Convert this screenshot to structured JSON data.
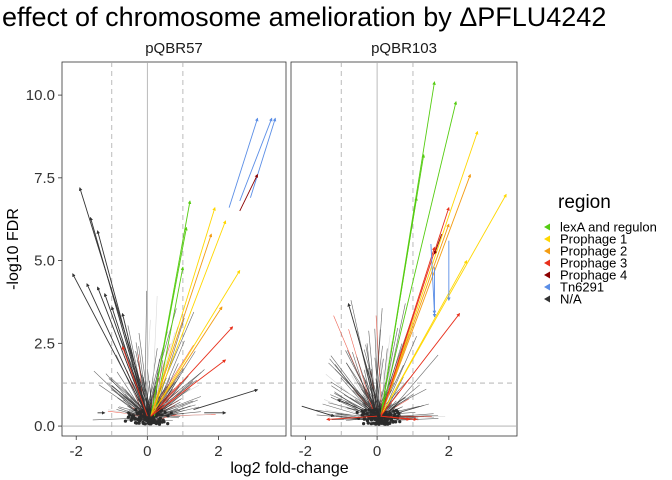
{
  "title": "effect of chromosome amelioration by ΔPFLU4242",
  "chart_data": {
    "type": "scatter",
    "title": "effect of chromosome amelioration by ΔPFLU4242",
    "xlabel": "log2 fold-change",
    "ylabel": "-log10 FDR",
    "xlim": [
      -2.4,
      3.9
    ],
    "ylim": [
      -0.3,
      11.0
    ],
    "x_ticks": [
      -2,
      0,
      2
    ],
    "x_tick_labels": [
      "-2",
      "0",
      "2"
    ],
    "y_ticks": [
      0.0,
      2.5,
      5.0,
      7.5,
      10.0
    ],
    "y_tick_labels": [
      "0.0",
      "2.5",
      "5.0",
      "7.5",
      "10.0"
    ],
    "vlines": [
      -1,
      1
    ],
    "hline": 1.3,
    "grid": false,
    "legend_position": "right",
    "legend_title": "region",
    "legend": [
      {
        "label": "lexA and regulon",
        "color": "#55cc11"
      },
      {
        "label": "Prophage 1",
        "color": "#ffd700"
      },
      {
        "label": "Prophage 2",
        "color": "#f39c12"
      },
      {
        "label": "Prophage 3",
        "color": "#e8301c"
      },
      {
        "label": "Prophage 4",
        "color": "#8b0000"
      },
      {
        "label": "Tn6291",
        "color": "#5b8ee6"
      },
      {
        "label": "N/A",
        "color": "#333333"
      }
    ],
    "facets": [
      {
        "name": "pQBR57",
        "arrows": [
          {
            "x0": 2.3,
            "y0": 6.6,
            "x1": 3.1,
            "y1": 9.3,
            "region": "Tn6291"
          },
          {
            "x0": 2.6,
            "y0": 6.8,
            "x1": 3.5,
            "y1": 9.3,
            "region": "Tn6291"
          },
          {
            "x0": 2.9,
            "y0": 6.9,
            "x1": 3.6,
            "y1": 9.3,
            "region": "Tn6291"
          },
          {
            "x0": 2.6,
            "y0": 6.5,
            "x1": 3.1,
            "y1": 7.6,
            "region": "Prophage 4"
          },
          {
            "x0": 0.1,
            "y0": 0.3,
            "x1": -1.9,
            "y1": 7.2,
            "region": "N/A"
          },
          {
            "x0": 0.0,
            "y0": 0.3,
            "x1": -1.6,
            "y1": 6.3,
            "region": "N/A"
          },
          {
            "x0": 0.0,
            "y0": 0.3,
            "x1": -1.4,
            "y1": 5.9,
            "region": "N/A"
          },
          {
            "x0": 0.0,
            "y0": 0.3,
            "x1": -2.1,
            "y1": 4.6,
            "region": "N/A"
          },
          {
            "x0": 0.0,
            "y0": 0.3,
            "x1": -1.7,
            "y1": 4.3,
            "region": "N/A"
          },
          {
            "x0": 0.0,
            "y0": 0.3,
            "x1": -1.4,
            "y1": 4.2,
            "region": "N/A"
          },
          {
            "x0": 0.0,
            "y0": 0.3,
            "x1": -1.2,
            "y1": 4.0,
            "region": "N/A"
          },
          {
            "x0": 0.0,
            "y0": 0.3,
            "x1": -1.0,
            "y1": 3.6,
            "region": "N/A"
          },
          {
            "x0": 0.0,
            "y0": 0.3,
            "x1": -0.7,
            "y1": 3.4,
            "region": "N/A"
          },
          {
            "x0": 0.0,
            "y0": 0.3,
            "x1": -0.7,
            "y1": 2.4,
            "region": "Prophage 3"
          },
          {
            "x0": 0.1,
            "y0": 0.3,
            "x1": 1.2,
            "y1": 6.8,
            "region": "lexA and regulon"
          },
          {
            "x0": 0.1,
            "y0": 0.3,
            "x1": 1.1,
            "y1": 6.0,
            "region": "lexA and regulon"
          },
          {
            "x0": 0.2,
            "y0": 0.3,
            "x1": 1.0,
            "y1": 4.8,
            "region": "lexA and regulon"
          },
          {
            "x0": 0.1,
            "y0": 0.3,
            "x1": 1.9,
            "y1": 6.6,
            "region": "Prophage 1"
          },
          {
            "x0": 0.1,
            "y0": 0.3,
            "x1": 2.2,
            "y1": 6.2,
            "region": "Prophage 1"
          },
          {
            "x0": 0.1,
            "y0": 0.3,
            "x1": 2.6,
            "y1": 4.7,
            "region": "Prophage 1"
          },
          {
            "x0": 0.1,
            "y0": 0.3,
            "x1": 1.8,
            "y1": 5.8,
            "region": "Prophage 2"
          },
          {
            "x0": 0.1,
            "y0": 0.3,
            "x1": 2.1,
            "y1": 3.6,
            "region": "Prophage 2"
          },
          {
            "x0": 0.1,
            "y0": 0.3,
            "x1": 2.4,
            "y1": 3.0,
            "region": "Prophage 3"
          },
          {
            "x0": 0.1,
            "y0": 0.3,
            "x1": 2.2,
            "y1": 2.0,
            "region": "Prophage 3"
          },
          {
            "x0": -1.4,
            "y0": 0.4,
            "x1": -1.2,
            "y1": 0.4,
            "region": "N/A"
          },
          {
            "x0": 1.6,
            "y0": 0.4,
            "x1": 2.2,
            "y1": 0.4,
            "region": "N/A"
          },
          {
            "x0": 1.3,
            "y0": 0.5,
            "x1": 3.1,
            "y1": 1.1,
            "region": "N/A"
          }
        ]
      },
      {
        "name": "pQBR103",
        "arrows": [
          {
            "x0": 0.1,
            "y0": 0.3,
            "x1": 1.6,
            "y1": 10.4,
            "region": "lexA and regulon"
          },
          {
            "x0": 0.1,
            "y0": 0.3,
            "x1": 2.2,
            "y1": 9.8,
            "region": "lexA and regulon"
          },
          {
            "x0": 0.1,
            "y0": 0.3,
            "x1": 1.3,
            "y1": 8.2,
            "region": "lexA and regulon"
          },
          {
            "x0": 0.1,
            "y0": 0.3,
            "x1": 1.1,
            "y1": 6.9,
            "region": "lexA and regulon"
          },
          {
            "x0": 0.1,
            "y0": 0.3,
            "x1": 2.8,
            "y1": 8.9,
            "region": "Prophage 1"
          },
          {
            "x0": 0.1,
            "y0": 0.3,
            "x1": 3.6,
            "y1": 7.0,
            "region": "Prophage 1"
          },
          {
            "x0": 0.1,
            "y0": 0.3,
            "x1": 2.5,
            "y1": 5.0,
            "region": "Prophage 1"
          },
          {
            "x0": 0.1,
            "y0": 0.3,
            "x1": 2.6,
            "y1": 7.6,
            "region": "Prophage 2"
          },
          {
            "x0": 0.1,
            "y0": 0.3,
            "x1": 2.0,
            "y1": 6.1,
            "region": "Prophage 2"
          },
          {
            "x0": 0.1,
            "y0": 0.3,
            "x1": 2.0,
            "y1": 6.6,
            "region": "Prophage 3"
          },
          {
            "x0": 0.1,
            "y0": 0.3,
            "x1": 1.6,
            "y1": 5.4,
            "region": "Prophage 3"
          },
          {
            "x0": 0.1,
            "y0": 0.3,
            "x1": 2.3,
            "y1": 3.4,
            "region": "Prophage 3"
          },
          {
            "x0": 1.5,
            "y0": 5.5,
            "x1": 1.6,
            "y1": 3.4,
            "region": "Tn6291"
          },
          {
            "x0": 1.6,
            "y0": 4.8,
            "x1": 1.6,
            "y1": 3.3,
            "region": "Tn6291"
          },
          {
            "x0": 2.0,
            "y0": 5.6,
            "x1": 2.0,
            "y1": 3.8,
            "region": "Tn6291"
          },
          {
            "x0": 1.8,
            "y0": 5.8,
            "x1": 1.6,
            "y1": 5.2,
            "region": "Prophage 4"
          },
          {
            "x0": 0.1,
            "y0": 0.3,
            "x1": -0.8,
            "y1": 3.7,
            "region": "N/A"
          },
          {
            "x0": 0.0,
            "y0": 0.3,
            "x1": -1.1,
            "y1": 0.8,
            "region": "N/A"
          },
          {
            "x0": 0.0,
            "y0": 0.3,
            "x1": -1.4,
            "y1": 0.2,
            "region": "Prophage 3"
          },
          {
            "x0": 0.1,
            "y0": 0.3,
            "x1": 0.9,
            "y1": 0.2,
            "region": "Prophage 3"
          },
          {
            "x0": 0.1,
            "y0": 0.3,
            "x1": 1.1,
            "y1": 0.2,
            "region": "Prophage 3"
          },
          {
            "x0": -2.1,
            "y0": 0.6,
            "x1": -1.2,
            "y1": 0.3,
            "region": "N/A"
          }
        ]
      }
    ]
  }
}
